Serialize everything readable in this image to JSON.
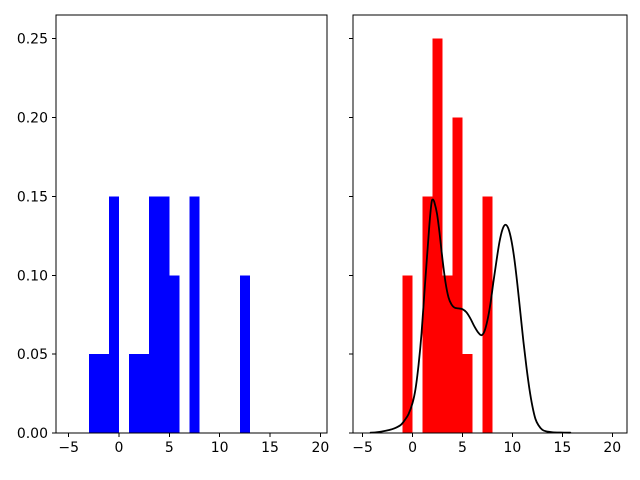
{
  "figure": {
    "background": "#ffffff",
    "title": ""
  },
  "chart_data": [
    {
      "type": "bar",
      "name": "left-histogram-panel",
      "title": "",
      "xlabel": "",
      "ylabel": "",
      "bar_color": "#0000ff",
      "xlim": [
        -6.26,
        20.66
      ],
      "ylim": [
        0,
        0.265
      ],
      "grid": false,
      "legend": "none",
      "xticks": [
        -5,
        0,
        5,
        10,
        15,
        20
      ],
      "xtick_labels": [
        "−5",
        "0",
        "5",
        "10",
        "15",
        "20"
      ],
      "yticks": [
        0,
        0.05,
        0.1,
        0.15,
        0.2,
        0.25
      ],
      "ytick_labels": [
        "0.00",
        "0.05",
        "0.10",
        "0.15",
        "0.20",
        "0.25"
      ],
      "show_ytick_labels": true,
      "bins": [
        {
          "x0": -3,
          "x1": -1,
          "height": 0.05
        },
        {
          "x0": -1,
          "x1": 0,
          "height": 0.15
        },
        {
          "x0": 1,
          "x1": 3,
          "height": 0.05
        },
        {
          "x0": 3,
          "x1": 5,
          "height": 0.15
        },
        {
          "x0": 5,
          "x1": 6,
          "height": 0.1
        },
        {
          "x0": 7,
          "x1": 8,
          "height": 0.15
        },
        {
          "x0": 12,
          "x1": 13,
          "height": 0.1
        }
      ]
    },
    {
      "type": "bar+line",
      "name": "right-histogram-kde-panel",
      "title": "",
      "xlabel": "",
      "ylabel": "",
      "bar_color": "#ff0000",
      "line_color": "#000000",
      "line_width": 1.8,
      "xlim": [
        -5.96,
        21.47
      ],
      "ylim": [
        0,
        0.265
      ],
      "grid": false,
      "legend": "none",
      "xticks": [
        -5,
        0,
        5,
        10,
        15,
        20
      ],
      "xtick_labels": [
        "−5",
        "0",
        "5",
        "10",
        "15",
        "20"
      ],
      "yticks": [
        0,
        0.05,
        0.1,
        0.15,
        0.2,
        0.25
      ],
      "ytick_labels": [
        "0.00",
        "0.05",
        "0.10",
        "0.15",
        "0.20",
        "0.25"
      ],
      "show_ytick_labels": false,
      "bins": [
        {
          "x0": -1,
          "x1": 0,
          "height": 0.1
        },
        {
          "x0": 1,
          "x1": 2,
          "height": 0.15
        },
        {
          "x0": 2,
          "x1": 3,
          "height": 0.25
        },
        {
          "x0": 3,
          "x1": 4,
          "height": 0.1
        },
        {
          "x0": 4,
          "x1": 5,
          "height": 0.2
        },
        {
          "x0": 5,
          "x1": 6,
          "height": 0.05
        },
        {
          "x0": 7,
          "x1": 8,
          "height": 0.15
        }
      ],
      "curve": [
        [
          -4.2,
          0.0002
        ],
        [
          -3.6,
          0.0005
        ],
        [
          -3.0,
          0.001
        ],
        [
          -2.4,
          0.0018
        ],
        [
          -1.8,
          0.003
        ],
        [
          -1.2,
          0.005
        ],
        [
          -0.8,
          0.008
        ],
        [
          -0.4,
          0.012
        ],
        [
          0.0,
          0.019
        ],
        [
          0.3,
          0.028
        ],
        [
          0.6,
          0.043
        ],
        [
          0.9,
          0.063
        ],
        [
          1.2,
          0.09
        ],
        [
          1.5,
          0.116
        ],
        [
          1.7,
          0.133
        ],
        [
          1.9,
          0.146
        ],
        [
          2.05,
          0.148
        ],
        [
          2.2,
          0.146
        ],
        [
          2.45,
          0.139
        ],
        [
          2.7,
          0.127
        ],
        [
          3.0,
          0.11
        ],
        [
          3.3,
          0.0955
        ],
        [
          3.6,
          0.086
        ],
        [
          3.9,
          0.0815
        ],
        [
          4.2,
          0.0795
        ],
        [
          4.6,
          0.079
        ],
        [
          5.0,
          0.0785
        ],
        [
          5.4,
          0.0765
        ],
        [
          5.8,
          0.0725
        ],
        [
          6.2,
          0.0675
        ],
        [
          6.6,
          0.0635
        ],
        [
          6.9,
          0.062
        ],
        [
          7.2,
          0.0645
        ],
        [
          7.5,
          0.0715
        ],
        [
          7.8,
          0.082
        ],
        [
          8.1,
          0.096
        ],
        [
          8.4,
          0.109
        ],
        [
          8.7,
          0.121
        ],
        [
          9.0,
          0.129
        ],
        [
          9.3,
          0.132
        ],
        [
          9.6,
          0.1295
        ],
        [
          9.9,
          0.122
        ],
        [
          10.2,
          0.11
        ],
        [
          10.5,
          0.094
        ],
        [
          10.8,
          0.076
        ],
        [
          11.1,
          0.058
        ],
        [
          11.4,
          0.042
        ],
        [
          11.7,
          0.028
        ],
        [
          12.0,
          0.017
        ],
        [
          12.3,
          0.009
        ],
        [
          12.6,
          0.005
        ],
        [
          13.0,
          0.002
        ],
        [
          13.4,
          0.001
        ],
        [
          14.0,
          0.0005
        ],
        [
          14.8,
          0.0003
        ],
        [
          15.8,
          0.0002
        ]
      ]
    }
  ]
}
